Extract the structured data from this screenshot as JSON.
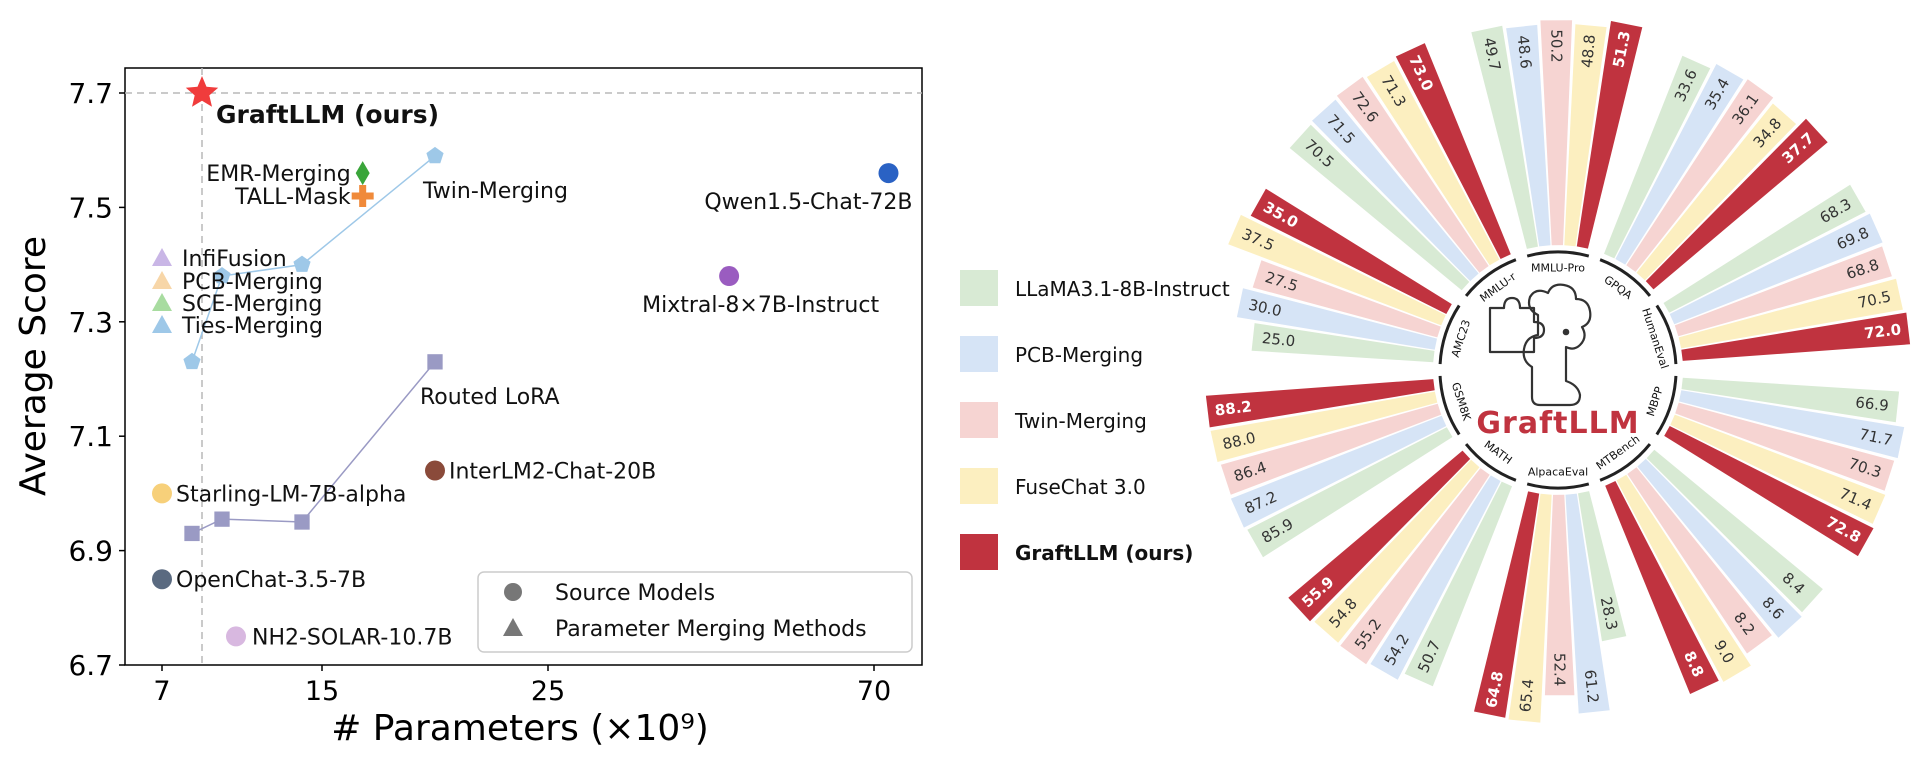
{
  "chart_data": [
    {
      "type": "scatter",
      "xlabel": "# Parameters",
      "xlabel_unit": "(×10⁹)",
      "ylabel": "Average Score",
      "x_ticks": [
        "7",
        "15",
        "25",
        "70"
      ],
      "y_ticks": [
        "6.7",
        "6.9",
        "7.1",
        "7.3",
        "7.5",
        "7.7"
      ],
      "ylim": [
        6.7,
        7.75
      ],
      "x_scale": "nonlinear (7, 15, 25, 70 evenly spaced at ticks)",
      "grid": false,
      "reference_lines": {
        "x": 9,
        "y": 7.7,
        "style": "dashed gray"
      },
      "legend": {
        "position": "bottom-right",
        "entries": [
          {
            "label": "Source Models",
            "marker": "circle"
          },
          {
            "label": "Parameter Merging Methods",
            "marker": "triangle"
          }
        ]
      },
      "points": [
        {
          "label": "GraftLLM (ours)",
          "x": 9,
          "y": 7.7,
          "marker": "star",
          "color": "#f03c3c",
          "bold": true
        },
        {
          "label": "EMR-Merging",
          "x": 16.8,
          "y": 7.56,
          "marker": "diamond",
          "color": "#3aa53a"
        },
        {
          "label": "TALL-Mask",
          "x": 16.8,
          "y": 7.52,
          "marker": "plus",
          "color": "#f08a3a"
        },
        {
          "label": "Qwen1.5-Chat-72B",
          "x": 72,
          "y": 7.56,
          "marker": "circle",
          "color": "#2a62c4"
        },
        {
          "label": "Mixtral-8×7B-Instruct",
          "x": 50,
          "y": 7.38,
          "marker": "circle",
          "color": "#9a5cc0"
        },
        {
          "label": "InterLM2-Chat-20B",
          "x": 20,
          "y": 7.04,
          "marker": "circle",
          "color": "#8a4a3a"
        },
        {
          "label": "Starling-LM-7B-alpha",
          "x": 7,
          "y": 7.0,
          "marker": "circle",
          "color": "#f7d07a"
        },
        {
          "label": "OpenChat-3.5-7B",
          "x": 7,
          "y": 6.85,
          "marker": "circle",
          "color": "#5a6a80"
        },
        {
          "label": "NH2-SOLAR-10.7B",
          "x": 10.7,
          "y": 6.75,
          "marker": "circle",
          "color": "#d8b8e0"
        },
        {
          "label": "InfiFusion",
          "x": 7,
          "y": 7.38,
          "marker": "triangle",
          "color": "#c9b6e6"
        },
        {
          "label": "PCB-Merging",
          "x": 7,
          "y": 7.355,
          "marker": "triangle",
          "color": "#f7d6a8"
        },
        {
          "label": "SCE-Merging",
          "x": 7,
          "y": 7.33,
          "marker": "triangle",
          "color": "#a8dca0"
        },
        {
          "label": "Ties-Merging",
          "x": 7,
          "y": 7.305,
          "marker": "triangle",
          "color": "#9ec8e8"
        }
      ],
      "series": [
        {
          "name": "Twin-Merging",
          "marker": "pentagon",
          "color": "#9ec8e8",
          "x": [
            8.5,
            10,
            14,
            20
          ],
          "y": [
            7.23,
            7.38,
            7.4,
            7.59
          ]
        },
        {
          "name": "Routed LoRA",
          "marker": "square",
          "color": "#9a9ac4",
          "x": [
            8.5,
            10,
            14,
            20
          ],
          "y": [
            6.93,
            6.955,
            6.95,
            7.23
          ]
        }
      ]
    },
    {
      "type": "radial-bar",
      "center_title": "GraftLLM",
      "legend": {
        "position": "left",
        "entries": [
          {
            "label": "LLaMA3.1-8B-Instruct",
            "color": "#d8ead4"
          },
          {
            "label": "PCB-Merging",
            "color": "#d6e4f6"
          },
          {
            "label": "Twin-Merging",
            "color": "#f6d4d2"
          },
          {
            "label": "FuseChat 3.0",
            "color": "#fcefc0"
          },
          {
            "label": "GraftLLM (ours)",
            "color": "#c0333f",
            "bold": true
          }
        ]
      },
      "categories": [
        "MMLU-Pro",
        "GPQA",
        "HumanEval",
        "MBPP",
        "MTBench",
        "AlpacaEval",
        "MATH",
        "GSM8K",
        "AMC23",
        "MMLU-r"
      ],
      "series": [
        {
          "name": "LLaMA3.1-8B-Instruct",
          "values": [
            49.7,
            33.6,
            68.3,
            66.9,
            8.4,
            28.3,
            50.7,
            85.9,
            25.0,
            70.5
          ]
        },
        {
          "name": "PCB-Merging",
          "values": [
            48.6,
            35.4,
            69.8,
            71.7,
            8.6,
            61.2,
            54.2,
            87.2,
            30.0,
            71.5
          ]
        },
        {
          "name": "Twin-Merging",
          "values": [
            50.2,
            36.1,
            68.8,
            70.3,
            8.2,
            52.4,
            55.2,
            86.4,
            27.5,
            72.6
          ]
        },
        {
          "name": "FuseChat 3.0",
          "values": [
            48.8,
            34.8,
            70.5,
            71.4,
            9.0,
            65.4,
            54.8,
            88.0,
            37.5,
            71.3
          ]
        },
        {
          "name": "GraftLLM (ours)",
          "values": [
            51.3,
            37.7,
            72.0,
            72.8,
            8.8,
            64.8,
            55.9,
            88.2,
            35.0,
            73.0
          ]
        }
      ]
    }
  ]
}
